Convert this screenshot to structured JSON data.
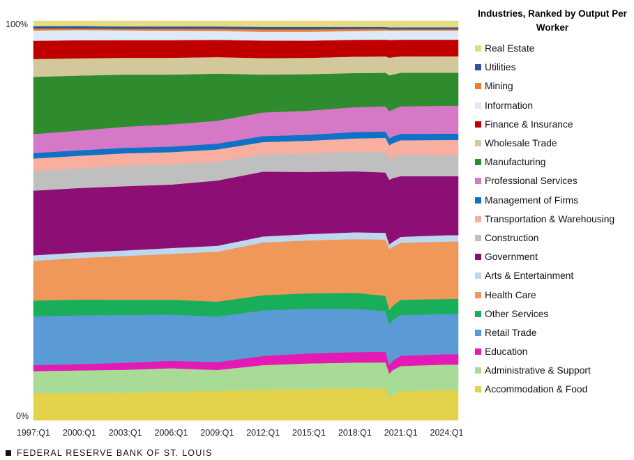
{
  "chart_data": {
    "type": "area",
    "title": "",
    "stacking": "100%",
    "xlabel": "",
    "ylabel": "",
    "ylim": [
      0,
      100
    ],
    "y_tick_labels": [
      "100%",
      "0%"
    ],
    "x_tick_labels": [
      "1997:Q1",
      "2000:Q1",
      "2003:Q1",
      "2006:Q1",
      "2009:Q1",
      "2012:Q1",
      "2015:Q1",
      "2018:Q1",
      "2021:Q1",
      "2024:Q1"
    ],
    "x_years": [
      1997,
      2000,
      2003,
      2006,
      2009,
      2012,
      2015,
      2018,
      2020,
      2020.25,
      2020.5,
      2021,
      2024,
      2024.75
    ],
    "legend_title": "Industries, Ranked by Output Per Worker",
    "legend_position": "right",
    "series": [
      {
        "name": "Accommodation & Food",
        "color": "#E4D24A",
        "values": [
          6.8,
          6.9,
          7.0,
          7.3,
          7.5,
          7.6,
          7.8,
          8.0,
          8.0,
          5.5,
          6.6,
          7.3,
          7.6,
          7.6
        ]
      },
      {
        "name": "Administrative & Support",
        "color": "#A8DB95",
        "values": [
          5.6,
          5.8,
          5.9,
          6.0,
          5.3,
          6.2,
          6.4,
          6.4,
          6.5,
          6.1,
          6.0,
          6.3,
          6.4,
          6.4
        ]
      },
      {
        "name": "Education",
        "color": "#E31AB4",
        "values": [
          1.5,
          1.6,
          1.8,
          1.9,
          2.0,
          2.3,
          2.5,
          2.6,
          2.7,
          2.1,
          2.3,
          2.6,
          2.6,
          2.6
        ]
      },
      {
        "name": "Retail Trade",
        "color": "#5B9BD5",
        "values": [
          12.3,
          12.4,
          12.2,
          11.8,
          11.6,
          11.4,
          11.2,
          10.8,
          10.2,
          10.1,
          10.1,
          10.2,
          10.1,
          10.1
        ]
      },
      {
        "name": "Other Services",
        "color": "#19AF5A",
        "values": [
          4.0,
          4.0,
          3.9,
          3.8,
          3.8,
          3.8,
          3.8,
          4.0,
          3.8,
          3.5,
          3.6,
          3.8,
          3.8,
          3.8
        ]
      },
      {
        "name": "Health Care",
        "color": "#F0975A",
        "values": [
          10.0,
          10.6,
          11.2,
          11.7,
          12.7,
          13.2,
          13.2,
          13.4,
          14.1,
          15.2,
          14.6,
          14.3,
          14.4,
          14.4
        ]
      },
      {
        "name": "Arts & Entertainment",
        "color": "#BDD7EE",
        "values": [
          1.4,
          1.4,
          1.4,
          1.5,
          1.5,
          1.5,
          1.6,
          1.7,
          1.7,
          1.1,
          1.3,
          1.5,
          1.6,
          1.6
        ]
      },
      {
        "name": "Government",
        "color": "#8D0E74",
        "values": [
          16.3,
          16.4,
          16.4,
          16.2,
          16.6,
          16.2,
          15.5,
          15.2,
          15.1,
          16.0,
          15.8,
          15.2,
          14.8,
          14.8
        ]
      },
      {
        "name": "Construction",
        "color": "#BFBFBF",
        "values": [
          4.9,
          5.0,
          5.3,
          5.2,
          4.8,
          4.3,
          4.6,
          4.9,
          5.2,
          5.2,
          5.2,
          5.3,
          5.3,
          5.3
        ]
      },
      {
        "name": "Transportation & Warehousing",
        "color": "#F8AFA0",
        "values": [
          3.2,
          3.2,
          3.1,
          3.1,
          3.1,
          3.1,
          3.2,
          3.3,
          3.5,
          3.4,
          3.5,
          3.7,
          3.8,
          3.8
        ]
      },
      {
        "name": "Management of Firms",
        "color": "#0F72C6",
        "values": [
          1.4,
          1.4,
          1.4,
          1.4,
          1.5,
          1.5,
          1.5,
          1.6,
          1.6,
          1.7,
          1.7,
          1.6,
          1.6,
          1.6
        ]
      },
      {
        "name": "Professional Services",
        "color": "#D579C6",
        "values": [
          4.8,
          5.0,
          5.4,
          5.7,
          5.8,
          5.9,
          6.0,
          6.2,
          6.3,
          6.7,
          6.7,
          6.9,
          7.0,
          7.0
        ]
      },
      {
        "name": "Manufacturing",
        "color": "#2E8B2E",
        "values": [
          14.4,
          14.0,
          13.3,
          12.7,
          12.0,
          9.5,
          9.1,
          8.5,
          8.4,
          8.9,
          8.7,
          8.4,
          8.3,
          8.3
        ]
      },
      {
        "name": "Wholesale Trade",
        "color": "#D2C89C",
        "values": [
          4.5,
          4.4,
          4.3,
          4.3,
          4.2,
          4.1,
          4.1,
          4.1,
          4.1,
          4.4,
          4.3,
          4.1,
          4.1,
          4.1
        ]
      },
      {
        "name": "Finance & Insurance",
        "color": "#C00000",
        "values": [
          4.6,
          4.6,
          4.5,
          4.5,
          4.4,
          4.4,
          4.3,
          4.2,
          4.2,
          4.4,
          4.3,
          4.2,
          4.2,
          4.2
        ]
      },
      {
        "name": "Information",
        "color": "#DEEAF7",
        "values": [
          2.6,
          2.6,
          2.5,
          2.4,
          2.3,
          2.2,
          2.2,
          2.2,
          2.3,
          2.3,
          2.3,
          2.3,
          2.3,
          2.3
        ]
      },
      {
        "name": "Mining",
        "color": "#ED7D31",
        "values": [
          0.5,
          0.4,
          0.4,
          0.5,
          0.5,
          0.6,
          0.6,
          0.5,
          0.4,
          0.3,
          0.3,
          0.3,
          0.3,
          0.3
        ]
      },
      {
        "name": "Utilities",
        "color": "#2F5597",
        "values": [
          0.6,
          0.6,
          0.6,
          0.6,
          0.6,
          0.6,
          0.6,
          0.5,
          0.5,
          0.5,
          0.5,
          0.5,
          0.5,
          0.5
        ]
      },
      {
        "name": "Real Estate",
        "color": "#E6DB82",
        "values": [
          1.3,
          1.3,
          1.4,
          1.4,
          1.4,
          1.5,
          1.5,
          1.5,
          1.5,
          1.6,
          1.6,
          1.6,
          1.6,
          1.6
        ]
      }
    ]
  },
  "legend_order": [
    18,
    17,
    16,
    15,
    14,
    13,
    12,
    11,
    10,
    9,
    8,
    7,
    6,
    5,
    4,
    3,
    2,
    1,
    0
  ],
  "footer": {
    "text": "FEDERAL RESERVE BANK OF ST. LOUIS"
  }
}
